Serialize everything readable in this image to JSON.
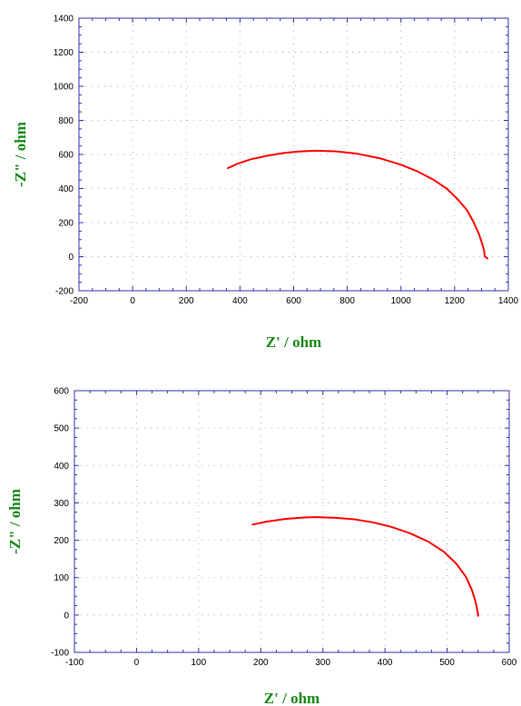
{
  "colors": {
    "curve": "#ff0000",
    "axis": "#3333aa",
    "grid": "#aab0c8",
    "axis_title": "#1a8a1a"
  },
  "chart_data": [
    {
      "type": "line",
      "xlabel": "Z' / ohm",
      "ylabel": "-Z\" / ohm",
      "xlim": [
        -200,
        1400
      ],
      "ylim": [
        -200,
        1400
      ],
      "xticks": [
        -200,
        0,
        200,
        400,
        600,
        800,
        1000,
        1200,
        1400
      ],
      "yticks": [
        -200,
        0,
        200,
        400,
        600,
        800,
        1000,
        1200,
        1400
      ],
      "grid": true,
      "series": [
        {
          "color": "#ff0000",
          "x": [
            355,
            390,
            440,
            500,
            560,
            620,
            680,
            760,
            840,
            920,
            1000,
            1060,
            1120,
            1170,
            1210,
            1245,
            1270,
            1290,
            1303,
            1310,
            1312,
            1318,
            1322
          ],
          "y": [
            520,
            545,
            572,
            592,
            608,
            617,
            622,
            618,
            604,
            578,
            540,
            502,
            453,
            400,
            340,
            275,
            205,
            135,
            75,
            35,
            2,
            -5,
            -10
          ]
        }
      ]
    },
    {
      "type": "line",
      "xlabel": "Z' / ohm",
      "ylabel": "-Z\" / ohm",
      "xlim": [
        -100,
        600
      ],
      "ylim": [
        -100,
        600
      ],
      "xticks": [
        -100,
        0,
        100,
        200,
        300,
        400,
        500,
        600
      ],
      "yticks": [
        -100,
        0,
        100,
        200,
        300,
        400,
        500,
        600
      ],
      "grid": true,
      "series": [
        {
          "color": "#ff0000",
          "x": [
            187,
            210,
            240,
            270,
            290,
            320,
            350,
            380,
            410,
            440,
            470,
            495,
            515,
            530,
            540,
            546,
            549,
            550
          ],
          "y": [
            242,
            250,
            257,
            261,
            262,
            260,
            256,
            248,
            236,
            219,
            196,
            169,
            137,
            103,
            67,
            35,
            10,
            -2
          ]
        }
      ]
    }
  ]
}
